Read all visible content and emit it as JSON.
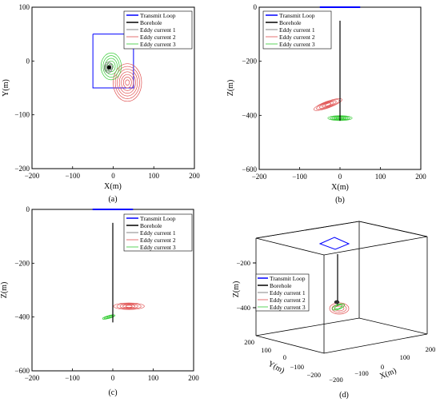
{
  "colors": {
    "transmit_loop": "#0000ff",
    "borehole": "#000000",
    "eddy1": "#666666",
    "eddy2": "#e05050",
    "eddy3": "#33cc33",
    "axis": "#000000"
  },
  "legend": {
    "transmit_loop": "Transmit Loop",
    "borehole": "Borehole",
    "eddy1": "Eddy current 1",
    "eddy2": "Eddy current 2",
    "eddy3": "Eddy current 3"
  },
  "chart_data": [
    {
      "id": "a",
      "type": "line",
      "caption": "(a)",
      "xlabel": "X(m)",
      "ylabel": "Y(m)",
      "xlim": [
        -200,
        200
      ],
      "ylim": [
        -200,
        100
      ],
      "xticks": [
        -200,
        -100,
        0,
        100,
        200
      ],
      "yticks": [
        -200,
        -100,
        0,
        100
      ],
      "xtick_labels": [
        "−200",
        "−100",
        "0",
        "100",
        "200"
      ],
      "ytick_labels": [
        "−200",
        "−100",
        "0",
        "100"
      ],
      "legend_position": "top-right",
      "transmit_loop": {
        "x": [
          -50,
          50,
          50,
          -50,
          -50
        ],
        "y": [
          50,
          50,
          -50,
          -50,
          50
        ]
      },
      "borehole": {
        "x": [
          -10
        ],
        "y": [
          -12
        ]
      },
      "eddy1": {
        "cx": -12,
        "cy": -12,
        "rx": [
          4,
          7,
          10
        ],
        "ry": [
          4,
          7,
          10
        ]
      },
      "eddy2": {
        "cx": 35,
        "cy": -40,
        "rx": [
          5,
          10,
          15,
          20,
          25,
          30,
          35
        ],
        "ry": [
          5,
          10,
          15,
          20,
          25,
          30,
          35
        ]
      },
      "eddy3": {
        "cx": -5,
        "cy": -10,
        "rx": [
          5,
          10,
          15,
          20,
          25
        ],
        "ry": [
          5,
          10,
          15,
          20,
          25
        ]
      }
    },
    {
      "id": "b",
      "type": "line",
      "caption": "(b)",
      "xlabel": "X(m)",
      "ylabel": "Z(m)",
      "xlim": [
        -200,
        200
      ],
      "ylim": [
        -600,
        0
      ],
      "xticks": [
        -200,
        -100,
        0,
        100,
        200
      ],
      "yticks": [
        -600,
        -400,
        -200,
        0
      ],
      "xtick_labels": [
        "−200",
        "−100",
        "0",
        "100",
        "200"
      ],
      "ytick_labels": [
        "−600",
        "−400",
        "−200",
        "0"
      ],
      "legend_position": "top-right",
      "transmit_loop": {
        "x": [
          -50,
          50
        ],
        "y": [
          0,
          0
        ]
      },
      "borehole": {
        "x": [
          0,
          0
        ],
        "y": [
          -50,
          -420
        ]
      },
      "eddy2": {
        "cx": -30,
        "cy": -360,
        "rx": [
          8,
          15,
          22,
          30,
          37
        ],
        "ry": [
          4,
          6,
          8,
          10,
          12
        ],
        "angle": -20
      },
      "eddy3": {
        "cx": 0,
        "cy": -410,
        "rx": [
          5,
          10,
          15,
          20,
          25,
          30
        ],
        "ry": [
          2,
          3,
          4,
          6,
          7,
          9
        ]
      }
    },
    {
      "id": "c",
      "type": "line",
      "caption": "(c)",
      "xlabel": "",
      "ylabel": "Z(m)",
      "xlim": [
        -200,
        200
      ],
      "ylim": [
        -600,
        0
      ],
      "xticks": [
        -200,
        -100,
        0,
        100,
        200
      ],
      "yticks": [
        -600,
        -400,
        -200,
        0
      ],
      "xtick_labels": [
        "−200",
        "−100",
        "0",
        "100",
        "200"
      ],
      "ytick_labels": [
        "−600",
        "−400",
        "−200",
        "0"
      ],
      "legend_position": "top-right",
      "transmit_loop": {
        "x": [
          -50,
          50
        ],
        "y": [
          0,
          0
        ]
      },
      "borehole": {
        "x": [
          0,
          0
        ],
        "y": [
          -50,
          -420
        ]
      },
      "eddy2": {
        "cx": 40,
        "cy": -360,
        "rx": [
          8,
          15,
          22,
          30,
          38
        ],
        "ry": [
          4,
          6,
          8,
          10,
          12
        ]
      },
      "eddy3": {
        "cx": -10,
        "cy": -400,
        "rx": [
          4,
          8,
          12,
          16
        ],
        "ry": [
          2,
          3,
          4,
          5
        ],
        "angle": -15
      }
    },
    {
      "id": "d",
      "type": "line",
      "caption": "(d)",
      "xlabel": "X(m)",
      "ylabel": "Z(m)",
      "zlabel": "Y(m)",
      "xticks": [
        -200,
        -100,
        0,
        100,
        200
      ],
      "xtick_labels": [
        "−200",
        "−100",
        "0",
        "100",
        "200"
      ],
      "yticks": [
        -200,
        -100,
        0,
        100,
        200
      ],
      "ytick_labels": [
        "−200",
        "−100",
        "0",
        "100",
        "200"
      ],
      "zticks": [
        -600,
        -400,
        -200
      ],
      "ztick_labels": [
        "−600",
        "−400",
        "−200"
      ],
      "legend_position": "middle-left"
    }
  ]
}
